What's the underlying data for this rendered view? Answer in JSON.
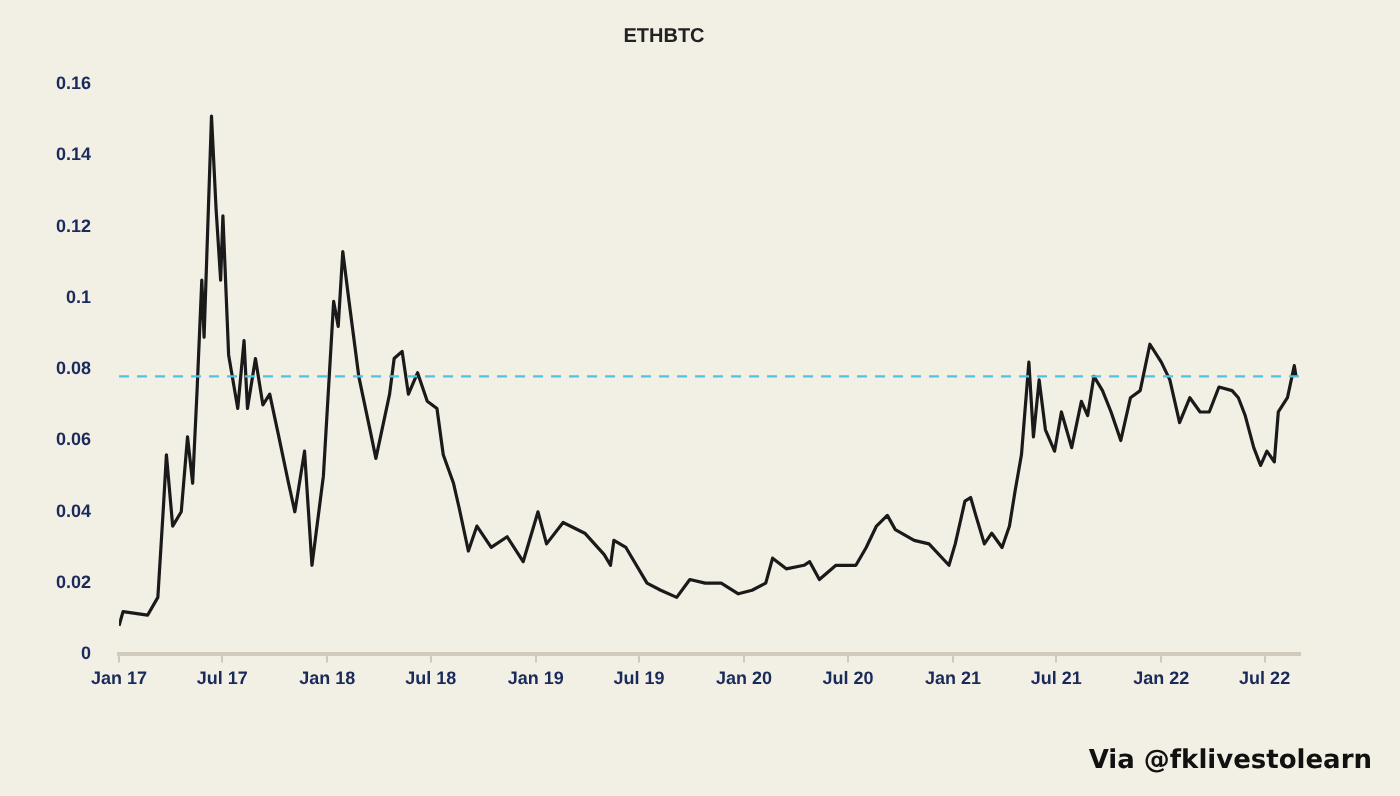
{
  "chart_data": {
    "type": "line",
    "title": "ETHBTC",
    "legend": false,
    "grid": false,
    "marker": "none",
    "line_style": "solid",
    "x": [
      "2017-01-01",
      "2017-01-08",
      "2017-02-20",
      "2017-03-10",
      "2017-03-20",
      "2017-03-25",
      "2017-04-05",
      "2017-04-20",
      "2017-05-01",
      "2017-05-10",
      "2017-05-18",
      "2017-05-26",
      "2017-05-30",
      "2017-06-12",
      "2017-06-20",
      "2017-06-28",
      "2017-07-02",
      "2017-07-12",
      "2017-07-28",
      "2017-08-08",
      "2017-08-14",
      "2017-08-28",
      "2017-09-10",
      "2017-09-22",
      "2017-10-08",
      "2017-10-25",
      "2017-11-05",
      "2017-11-22",
      "2017-12-05",
      "2017-12-25",
      "2018-01-12",
      "2018-01-20",
      "2018-01-28",
      "2018-02-08",
      "2018-02-25",
      "2018-03-18",
      "2018-03-27",
      "2018-04-20",
      "2018-04-28",
      "2018-05-12",
      "2018-05-23",
      "2018-06-08",
      "2018-06-25",
      "2018-07-12",
      "2018-07-23",
      "2018-08-10",
      "2018-08-20",
      "2018-09-05",
      "2018-09-20",
      "2018-10-15",
      "2018-11-12",
      "2018-12-10",
      "2019-01-05",
      "2019-01-20",
      "2019-02-18",
      "2019-03-28",
      "2019-05-01",
      "2019-05-12",
      "2019-05-18",
      "2019-06-08",
      "2019-07-15",
      "2019-08-08",
      "2019-09-05",
      "2019-09-28",
      "2019-10-25",
      "2019-11-22",
      "2019-12-22",
      "2020-01-15",
      "2020-02-08",
      "2020-02-20",
      "2020-03-15",
      "2020-04-15",
      "2020-04-25",
      "2020-05-12",
      "2020-06-10",
      "2020-07-15",
      "2020-08-02",
      "2020-08-20",
      "2020-09-08",
      "2020-09-22",
      "2020-10-25",
      "2020-11-20",
      "2020-12-25",
      "2021-01-05",
      "2021-01-22",
      "2021-02-01",
      "2021-02-10",
      "2021-02-25",
      "2021-03-10",
      "2021-03-28",
      "2021-04-10",
      "2021-04-20",
      "2021-05-01",
      "2021-05-14",
      "2021-05-22",
      "2021-06-01",
      "2021-06-12",
      "2021-06-28",
      "2021-07-10",
      "2021-07-28",
      "2021-08-14",
      "2021-08-25",
      "2021-09-05",
      "2021-09-20",
      "2021-10-05",
      "2021-10-22",
      "2021-11-08",
      "2021-11-25",
      "2021-12-12",
      "2022-01-01",
      "2022-01-16",
      "2022-02-02",
      "2022-02-20",
      "2022-03-10",
      "2022-03-26",
      "2022-04-12",
      "2022-05-05",
      "2022-05-16",
      "2022-05-28",
      "2022-06-12",
      "2022-06-24",
      "2022-07-05",
      "2022-07-18",
      "2022-07-25",
      "2022-08-10",
      "2022-08-22",
      "2022-08-25"
    ],
    "series": [
      {
        "color": "#1a1a1a",
        "values": [
          0.008,
          0.012,
          0.011,
          0.016,
          0.042,
          0.056,
          0.036,
          0.04,
          0.061,
          0.048,
          0.075,
          0.105,
          0.089,
          0.151,
          0.125,
          0.105,
          0.123,
          0.084,
          0.069,
          0.088,
          0.069,
          0.083,
          0.07,
          0.073,
          0.061,
          0.048,
          0.04,
          0.057,
          0.025,
          0.05,
          0.099,
          0.092,
          0.113,
          0.099,
          0.078,
          0.062,
          0.055,
          0.073,
          0.083,
          0.085,
          0.073,
          0.079,
          0.071,
          0.069,
          0.056,
          0.048,
          0.041,
          0.029,
          0.036,
          0.03,
          0.033,
          0.026,
          0.04,
          0.031,
          0.037,
          0.034,
          0.028,
          0.025,
          0.032,
          0.03,
          0.02,
          0.018,
          0.016,
          0.021,
          0.02,
          0.02,
          0.017,
          0.018,
          0.02,
          0.027,
          0.024,
          0.025,
          0.026,
          0.021,
          0.025,
          0.025,
          0.03,
          0.036,
          0.039,
          0.035,
          0.032,
          0.031,
          0.025,
          0.031,
          0.043,
          0.044,
          0.039,
          0.031,
          0.034,
          0.03,
          0.036,
          0.046,
          0.056,
          0.082,
          0.061,
          0.077,
          0.063,
          0.057,
          0.068,
          0.058,
          0.071,
          0.067,
          0.078,
          0.074,
          0.068,
          0.06,
          0.072,
          0.074,
          0.087,
          0.082,
          0.077,
          0.065,
          0.072,
          0.068,
          0.068,
          0.075,
          0.074,
          0.072,
          0.067,
          0.058,
          0.053,
          0.057,
          0.054,
          0.068,
          0.072,
          0.081,
          0.078
        ]
      }
    ],
    "xlim": [
      "2017-01-01",
      "2022-09-01"
    ],
    "xticks": [
      {
        "value": "2017-01-01",
        "label": "Jan 17"
      },
      {
        "value": "2017-07-01",
        "label": "Jul 17"
      },
      {
        "value": "2018-01-01",
        "label": "Jan 18"
      },
      {
        "value": "2018-07-01",
        "label": "Jul 18"
      },
      {
        "value": "2019-01-01",
        "label": "Jan 19"
      },
      {
        "value": "2019-07-01",
        "label": "Jul 19"
      },
      {
        "value": "2020-01-01",
        "label": "Jan 20"
      },
      {
        "value": "2020-07-01",
        "label": "Jul 20"
      },
      {
        "value": "2021-01-01",
        "label": "Jan 21"
      },
      {
        "value": "2021-07-01",
        "label": "Jul 21"
      },
      {
        "value": "2022-01-01",
        "label": "Jan 22"
      },
      {
        "value": "2022-07-01",
        "label": "Jul 22"
      }
    ],
    "ylim": [
      0,
      0.16
    ],
    "yticks": [
      0,
      0.02,
      0.04,
      0.06,
      0.08,
      0.1,
      0.12,
      0.14,
      0.16
    ],
    "ref_lines": [
      {
        "axis": "y",
        "value": 0.078,
        "color": "#4fc3e0",
        "line_style": "dashed"
      }
    ],
    "annotations": [
      "Via @fklivestolearn"
    ]
  }
}
